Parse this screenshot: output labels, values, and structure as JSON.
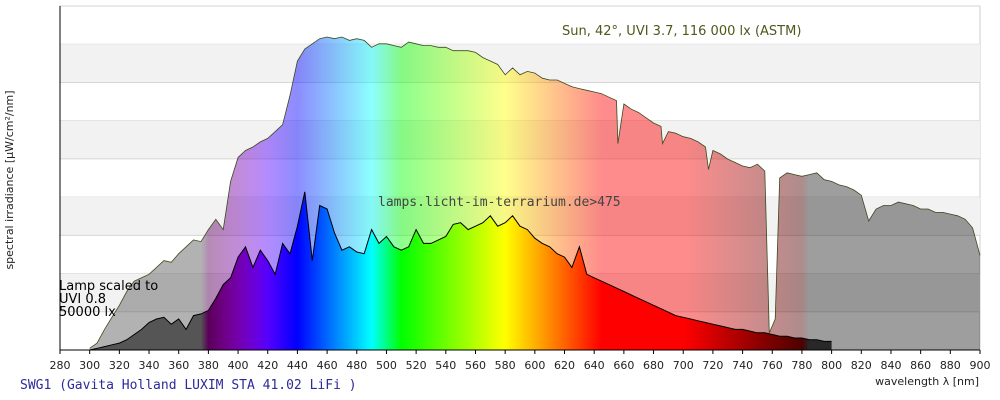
{
  "chart_data": {
    "type": "area",
    "title": "",
    "xlabel": "wavelength λ [nm]",
    "ylabel": "spectral irradiance [µW/cm²/nm]",
    "xlim": [
      280,
      900
    ],
    "x_ticks": [
      280,
      300,
      320,
      340,
      360,
      380,
      400,
      420,
      440,
      460,
      480,
      500,
      520,
      540,
      560,
      580,
      600,
      620,
      640,
      660,
      680,
      700,
      720,
      740,
      760,
      780,
      800,
      820,
      840,
      860,
      880,
      900
    ],
    "y_ticks_shown": false,
    "grid": "horizontal bands",
    "sun_annotation": "Sun, 42°, UVI 3.7, 116 000 lx (ASTM)",
    "lamp_annotation": [
      "Lamp scaled to",
      "UVI 0.8",
      "50000 lx"
    ],
    "watermark": "lamps.licht-im-terrarium.de>475",
    "footer": "SWG1 (Gavita Holland LUXIM STA 41.02 LiFi )",
    "series": [
      {
        "name": "Sun, 42°, UVI 3.7, 116 000 lx (ASTM)",
        "x": [
          300,
          305,
          310,
          315,
          320,
          325,
          330,
          335,
          340,
          345,
          350,
          355,
          360,
          365,
          370,
          375,
          380,
          385,
          390,
          395,
          400,
          405,
          410,
          415,
          420,
          425,
          430,
          435,
          440,
          445,
          450,
          455,
          460,
          465,
          470,
          475,
          480,
          485,
          490,
          495,
          500,
          505,
          510,
          515,
          520,
          525,
          530,
          535,
          540,
          545,
          550,
          555,
          560,
          565,
          570,
          575,
          580,
          585,
          590,
          595,
          600,
          605,
          610,
          615,
          620,
          625,
          630,
          635,
          640,
          645,
          650,
          655,
          656,
          660,
          665,
          670,
          675,
          680,
          685,
          686,
          690,
          695,
          700,
          705,
          710,
          715,
          717,
          720,
          725,
          730,
          735,
          740,
          745,
          750,
          755,
          758,
          760,
          762,
          765,
          770,
          775,
          780,
          785,
          790,
          795,
          800,
          805,
          810,
          815,
          820,
          825,
          830,
          835,
          840,
          845,
          850,
          855,
          860,
          865,
          870,
          875,
          880,
          885,
          890,
          895,
          900
        ],
        "values": [
          1,
          4,
          12,
          19,
          26,
          34,
          40,
          42,
          44,
          48,
          52,
          51,
          56,
          60,
          64,
          63,
          70,
          76,
          70,
          98,
          112,
          116,
          118,
          121,
          123,
          127,
          131,
          148,
          168,
          175,
          178,
          181,
          182,
          181,
          182,
          180,
          181,
          180,
          176,
          178,
          178,
          177,
          176,
          179,
          178,
          177,
          177,
          176,
          176,
          174,
          174,
          174,
          173,
          170,
          168,
          166,
          160,
          164,
          160,
          162,
          161,
          158,
          157,
          157,
          155,
          153,
          152,
          151,
          150,
          149,
          147,
          145,
          120,
          143,
          140,
          138,
          135,
          132,
          130,
          120,
          127,
          126,
          124,
          123,
          121,
          118,
          105,
          116,
          114,
          111,
          109,
          107,
          106,
          108,
          104,
          10,
          14,
          18,
          100,
          103,
          102,
          101,
          102,
          103,
          99,
          98,
          96,
          95,
          93,
          90,
          75,
          82,
          84,
          84,
          86,
          85,
          84,
          82,
          82,
          80,
          80,
          79,
          78,
          76,
          71,
          55
        ]
      },
      {
        "name": "Lamp scaled to UVI 0.8, 50000 lx",
        "x": [
          300,
          305,
          310,
          315,
          320,
          325,
          330,
          335,
          340,
          345,
          350,
          355,
          360,
          365,
          370,
          375,
          380,
          385,
          390,
          395,
          400,
          405,
          410,
          415,
          420,
          425,
          430,
          435,
          440,
          445,
          450,
          455,
          460,
          465,
          470,
          475,
          480,
          485,
          490,
          495,
          500,
          505,
          510,
          515,
          520,
          525,
          530,
          535,
          540,
          545,
          550,
          555,
          560,
          565,
          570,
          575,
          580,
          585,
          590,
          595,
          600,
          605,
          610,
          615,
          620,
          625,
          630,
          635,
          640,
          645,
          650,
          655,
          660,
          665,
          670,
          675,
          680,
          685,
          690,
          695,
          700,
          705,
          710,
          715,
          720,
          725,
          730,
          735,
          740,
          745,
          750,
          755,
          760,
          765,
          770,
          775,
          780,
          785,
          790,
          795,
          800
        ],
        "values": [
          0,
          1,
          2,
          3,
          4,
          6,
          9,
          12,
          16,
          18,
          19,
          15,
          18,
          12,
          20,
          21,
          23,
          30,
          38,
          42,
          54,
          60,
          48,
          58,
          52,
          44,
          62,
          56,
          72,
          92,
          52,
          84,
          82,
          68,
          58,
          60,
          57,
          56,
          70,
          62,
          66,
          60,
          58,
          60,
          70,
          62,
          62,
          64,
          66,
          73,
          74,
          70,
          72,
          74,
          78,
          72,
          74,
          78,
          72,
          70,
          65,
          62,
          60,
          56,
          54,
          48,
          60,
          44,
          42,
          40,
          38,
          36,
          34,
          32,
          30,
          28,
          26,
          24,
          22,
          20,
          19,
          18,
          17,
          16,
          15,
          14,
          13,
          12,
          12,
          11,
          10,
          10,
          9,
          8,
          8,
          7,
          7,
          6,
          6,
          5,
          5
        ]
      }
    ]
  }
}
